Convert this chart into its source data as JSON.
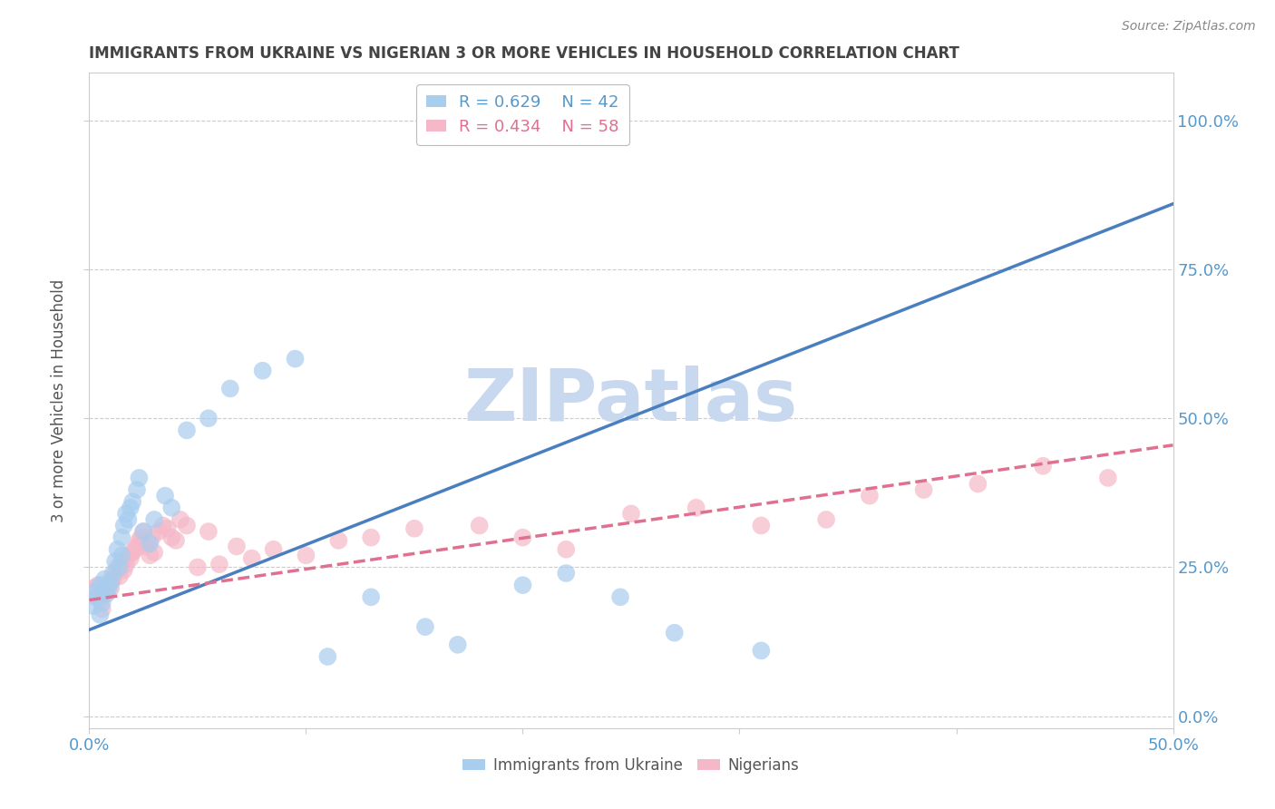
{
  "title": "IMMIGRANTS FROM UKRAINE VS NIGERIAN 3 OR MORE VEHICLES IN HOUSEHOLD CORRELATION CHART",
  "source": "Source: ZipAtlas.com",
  "ylabel_label": "3 or more Vehicles in Household",
  "ylabel_ticks_pct": [
    "0.0%",
    "25.0%",
    "50.0%",
    "75.0%",
    "100.0%"
  ],
  "ylabel_ticks_val": [
    0.0,
    0.25,
    0.5,
    0.75,
    1.0
  ],
  "xlim": [
    0.0,
    0.5
  ],
  "ylim": [
    -0.02,
    1.08
  ],
  "ukraine_R": 0.629,
  "ukraine_N": 42,
  "nigerian_R": 0.434,
  "nigerian_N": 58,
  "ukraine_color": "#A8CDEF",
  "nigerian_color": "#F5B8C8",
  "ukraine_line_color": "#4A7FBF",
  "nigerian_line_color": "#E07090",
  "watermark": "ZIPatlas",
  "watermark_color": "#C8D8EE",
  "background_color": "#FFFFFF",
  "grid_color": "#CCCCCC",
  "title_color": "#444444",
  "axis_label_color": "#444444",
  "tick_label_color": "#5599CC",
  "legend_label_ukraine": "Immigrants from Ukraine",
  "legend_label_nigerian": "Nigerians",
  "ukraine_line_x0": 0.0,
  "ukraine_line_y0": 0.145,
  "ukraine_line_x1": 0.5,
  "ukraine_line_y1": 0.86,
  "nigerian_line_x0": 0.0,
  "nigerian_line_y0": 0.195,
  "nigerian_line_x1": 0.5,
  "nigerian_line_y1": 0.455,
  "ukraine_scatter_x": [
    0.002,
    0.003,
    0.004,
    0.005,
    0.005,
    0.006,
    0.007,
    0.008,
    0.009,
    0.01,
    0.011,
    0.012,
    0.013,
    0.014,
    0.015,
    0.015,
    0.016,
    0.017,
    0.018,
    0.019,
    0.02,
    0.022,
    0.023,
    0.025,
    0.028,
    0.03,
    0.035,
    0.038,
    0.045,
    0.055,
    0.065,
    0.08,
    0.095,
    0.11,
    0.13,
    0.155,
    0.17,
    0.2,
    0.22,
    0.245,
    0.27,
    0.31
  ],
  "ukraine_scatter_y": [
    0.185,
    0.21,
    0.2,
    0.22,
    0.17,
    0.19,
    0.23,
    0.205,
    0.215,
    0.225,
    0.24,
    0.26,
    0.28,
    0.25,
    0.27,
    0.3,
    0.32,
    0.34,
    0.33,
    0.35,
    0.36,
    0.38,
    0.4,
    0.31,
    0.29,
    0.33,
    0.37,
    0.35,
    0.48,
    0.5,
    0.55,
    0.58,
    0.6,
    0.1,
    0.2,
    0.15,
    0.12,
    0.22,
    0.24,
    0.2,
    0.14,
    0.11
  ],
  "nigerian_scatter_x": [
    0.002,
    0.003,
    0.004,
    0.005,
    0.006,
    0.007,
    0.008,
    0.009,
    0.01,
    0.011,
    0.012,
    0.013,
    0.014,
    0.015,
    0.016,
    0.017,
    0.018,
    0.019,
    0.02,
    0.021,
    0.022,
    0.023,
    0.024,
    0.025,
    0.026,
    0.027,
    0.028,
    0.029,
    0.03,
    0.032,
    0.034,
    0.036,
    0.038,
    0.04,
    0.042,
    0.045,
    0.05,
    0.055,
    0.06,
    0.068,
    0.075,
    0.085,
    0.1,
    0.115,
    0.13,
    0.15,
    0.18,
    0.2,
    0.22,
    0.25,
    0.28,
    0.31,
    0.34,
    0.36,
    0.385,
    0.41,
    0.44,
    0.47
  ],
  "nigerian_scatter_y": [
    0.215,
    0.2,
    0.22,
    0.195,
    0.18,
    0.205,
    0.21,
    0.225,
    0.215,
    0.23,
    0.24,
    0.25,
    0.235,
    0.26,
    0.245,
    0.255,
    0.27,
    0.265,
    0.275,
    0.28,
    0.285,
    0.295,
    0.3,
    0.31,
    0.285,
    0.29,
    0.27,
    0.3,
    0.275,
    0.31,
    0.32,
    0.315,
    0.3,
    0.295,
    0.33,
    0.32,
    0.25,
    0.31,
    0.255,
    0.285,
    0.265,
    0.28,
    0.27,
    0.295,
    0.3,
    0.315,
    0.32,
    0.3,
    0.28,
    0.34,
    0.35,
    0.32,
    0.33,
    0.37,
    0.38,
    0.39,
    0.42,
    0.4
  ]
}
